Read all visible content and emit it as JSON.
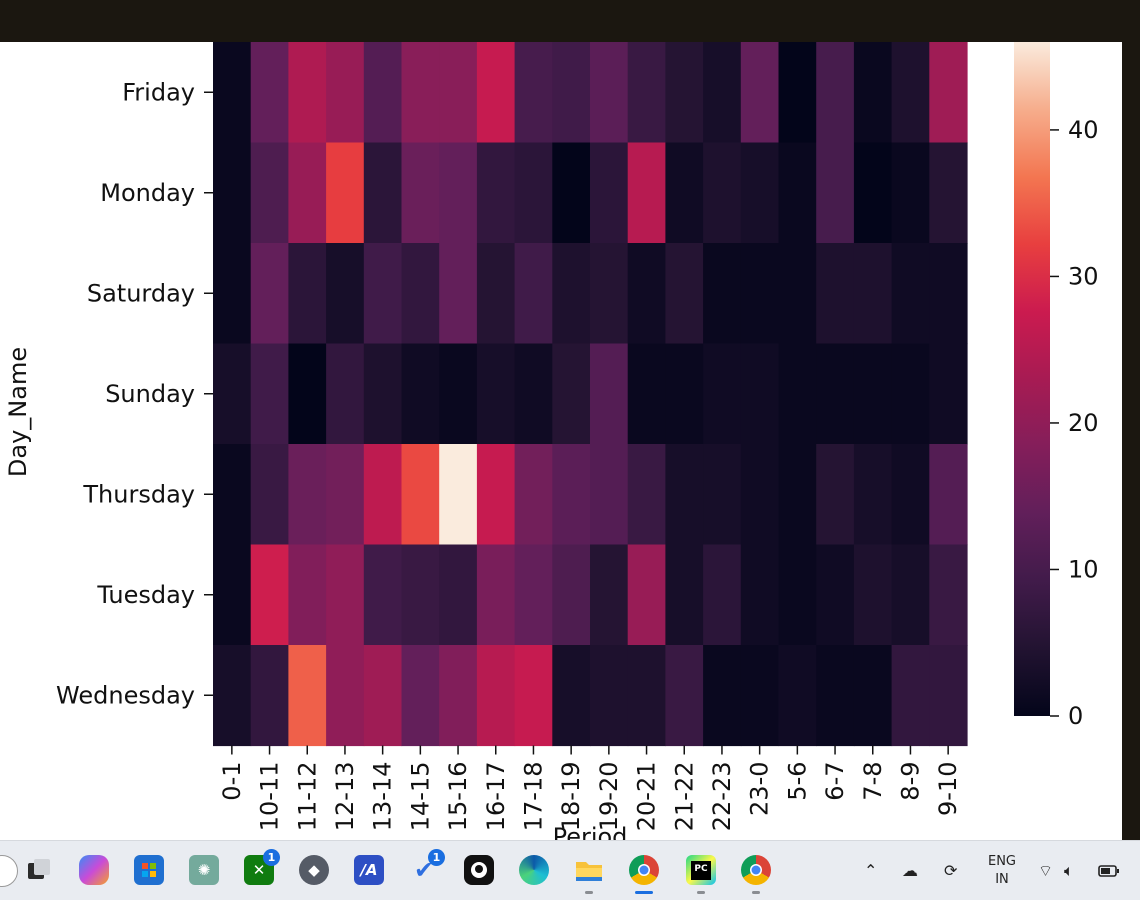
{
  "chart_data": {
    "type": "heatmap",
    "ylabel": "Day_Name",
    "xlabel": "Period",
    "rows": [
      "Friday",
      "Monday",
      "Saturday",
      "Sunday",
      "Thursday",
      "Tuesday",
      "Wednesday"
    ],
    "columns": [
      "0-1",
      "10-11",
      "11-12",
      "12-13",
      "13-14",
      "14-15",
      "15-16",
      "16-17",
      "17-18",
      "18-19",
      "19-20",
      "20-21",
      "21-22",
      "22-23",
      "23-0",
      "5-6",
      "6-7",
      "7-8",
      "8-9",
      "9-10"
    ],
    "values": [
      [
        1,
        14,
        24,
        21,
        12,
        19,
        19,
        27,
        10,
        9,
        13,
        8,
        5,
        3,
        14,
        0,
        10,
        1,
        4,
        22
      ],
      [
        1,
        11,
        21,
        32,
        6,
        15,
        14,
        7,
        6,
        0,
        6,
        25,
        2,
        4,
        3,
        1,
        10,
        0,
        1,
        5
      ],
      [
        1,
        14,
        6,
        3,
        9,
        7,
        14,
        5,
        9,
        4,
        5,
        2,
        5,
        1,
        1,
        1,
        4,
        4,
        2,
        2
      ],
      [
        3,
        9,
        0,
        7,
        4,
        2,
        1,
        3,
        2,
        5,
        12,
        1,
        1,
        2,
        2,
        1,
        1,
        1,
        1,
        2
      ],
      [
        1,
        8,
        15,
        16,
        26,
        33,
        46,
        27,
        16,
        13,
        12,
        8,
        3,
        3,
        2,
        1,
        5,
        3,
        2,
        12
      ],
      [
        1,
        28,
        18,
        20,
        9,
        8,
        7,
        17,
        14,
        11,
        5,
        21,
        3,
        6,
        2,
        1,
        2,
        4,
        3,
        8
      ],
      [
        3,
        7,
        35,
        20,
        22,
        14,
        18,
        25,
        27,
        3,
        4,
        4,
        8,
        1,
        1,
        2,
        1,
        1,
        7,
        7
      ]
    ],
    "colorbar": {
      "min": 0,
      "max": 46,
      "ticks": [
        0,
        10,
        20,
        30,
        40
      ]
    },
    "colormap": "rocket"
  },
  "taskbar": {
    "language_line1": "ENG",
    "language_line2": "IN",
    "xbox_badge": "1",
    "todo_badge": "1",
    "pycharm_label": "PC"
  }
}
